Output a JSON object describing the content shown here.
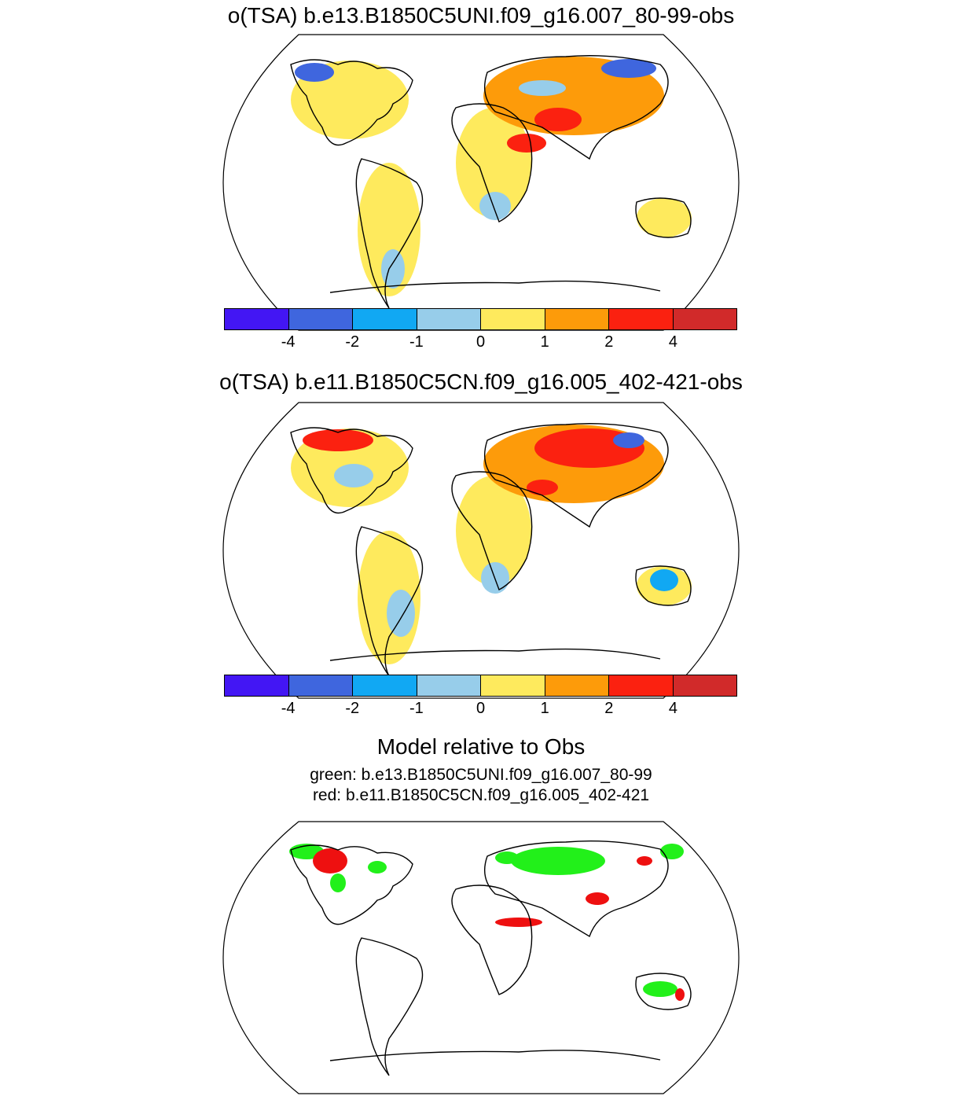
{
  "panels": [
    {
      "title": "o(TSA) b.e13.B1850C5UNI.f09_g16.007_80-99-obs"
    },
    {
      "title": "o(TSA) b.e11.B1850C5CN.f09_g16.005_402-421-obs"
    }
  ],
  "colorbar": {
    "colors": [
      "#4316f4",
      "#3f66de",
      "#11a8f3",
      "#97cdea",
      "#feea5d",
      "#fd9b0a",
      "#fb2110",
      "#d12a2a"
    ],
    "tick_labels": [
      "-4",
      "-2",
      "-1",
      "0",
      "1",
      "2",
      "4"
    ]
  },
  "comparison": {
    "title": "Model relative to Obs",
    "line1": "green: b.e13.B1850C5UNI.f09_g16.007_80-99",
    "line2": "red: b.e11.B1850C5CN.f09_g16.005_402-421",
    "green_color": "#22f01a",
    "red_color": "#ee1010"
  }
}
